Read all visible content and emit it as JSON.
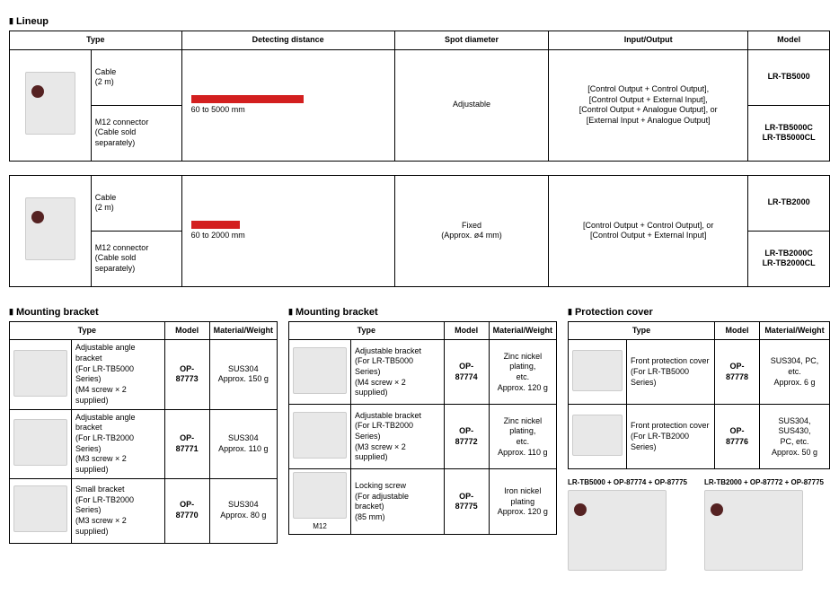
{
  "lineup": {
    "title": "Lineup",
    "headers": [
      "Type",
      "Detecting distance",
      "Spot diameter",
      "Input/Output",
      "Model"
    ],
    "group1": {
      "cable_type": "Cable\n(2 m)",
      "m12_type": "M12 connector\n(Cable sold separately)",
      "distance_label": "60 to 5000 mm",
      "bar_width_pct": 58,
      "spot": "Adjustable",
      "io": "[Control Output + Control Output],\n[Control Output + External Input],\n[Control Output + Analogue Output], or\n[External Input + Analogue Output]",
      "model_cable": "LR-TB5000",
      "model_m12": "LR-TB5000C\nLR-TB5000CL"
    },
    "group2": {
      "cable_type": "Cable\n(2 m)",
      "m12_type": "M12 connector\n(Cable sold separately)",
      "distance_label": "60 to 2000 mm",
      "bar_width_pct": 25,
      "spot": "Fixed\n(Approx. ø4 mm)",
      "io": "[Control Output + Control Output], or\n[Control Output + External Input]",
      "model_cable": "LR-TB2000",
      "model_m12": "LR-TB2000C\nLR-TB2000CL"
    }
  },
  "mount1": {
    "title": "Mounting bracket",
    "headers": [
      "Type",
      "Model",
      "Material/Weight"
    ],
    "rows": [
      {
        "type": "Adjustable angle bracket\n(For LR-TB5000 Series)\n(M4 screw × 2 supplied)",
        "model": "OP-87773",
        "mat": "SUS304\nApprox. 150 g"
      },
      {
        "type": "Adjustable angle bracket\n(For LR-TB2000 Series)\n(M3 screw × 2 supplied)",
        "model": "OP-87771",
        "mat": "SUS304\nApprox. 110 g"
      },
      {
        "type": "Small bracket\n(For LR-TB2000 Series)\n(M3 screw × 2 supplied)",
        "model": "OP-87770",
        "mat": "SUS304\nApprox. 80 g"
      }
    ]
  },
  "mount2": {
    "title": "Mounting bracket",
    "headers": [
      "Type",
      "Model",
      "Material/Weight"
    ],
    "rows": [
      {
        "type": "Adjustable bracket\n(For LR-TB5000 Series)\n(M4 screw × 2 supplied)",
        "model": "OP-87774",
        "mat": "Zinc nickel plating,\netc.\nApprox. 120 g"
      },
      {
        "type": "Adjustable bracket\n(For LR-TB2000 Series)\n(M3 screw × 2 supplied)",
        "model": "OP-87772",
        "mat": "Zinc nickel plating,\netc.\nApprox. 110 g"
      },
      {
        "type": "Locking screw\n(For adjustable bracket)\n(85 mm)",
        "model": "OP-87775",
        "mat": "Iron nickel plating\nApprox. 120 g",
        "note": "M12"
      }
    ]
  },
  "protection": {
    "title": "Protection cover",
    "headers": [
      "Type",
      "Model",
      "Material/Weight"
    ],
    "rows": [
      {
        "type": "Front protection cover\n(For LR-TB5000 Series)",
        "model": "OP-87778",
        "mat": "SUS304, PC,\netc.\nApprox. 6 g"
      },
      {
        "type": "Front protection cover\n(For LR-TB2000 Series)",
        "model": "OP-87776",
        "mat": "SUS304, SUS430,\nPC, etc.\nApprox. 50 g"
      }
    ],
    "combos": [
      "LR-TB5000 + OP-87774 + OP-87775",
      "LR-TB2000 + OP-87772 + OP-87775"
    ]
  },
  "colors": {
    "bar": "#d31f1f",
    "border": "#000000"
  }
}
